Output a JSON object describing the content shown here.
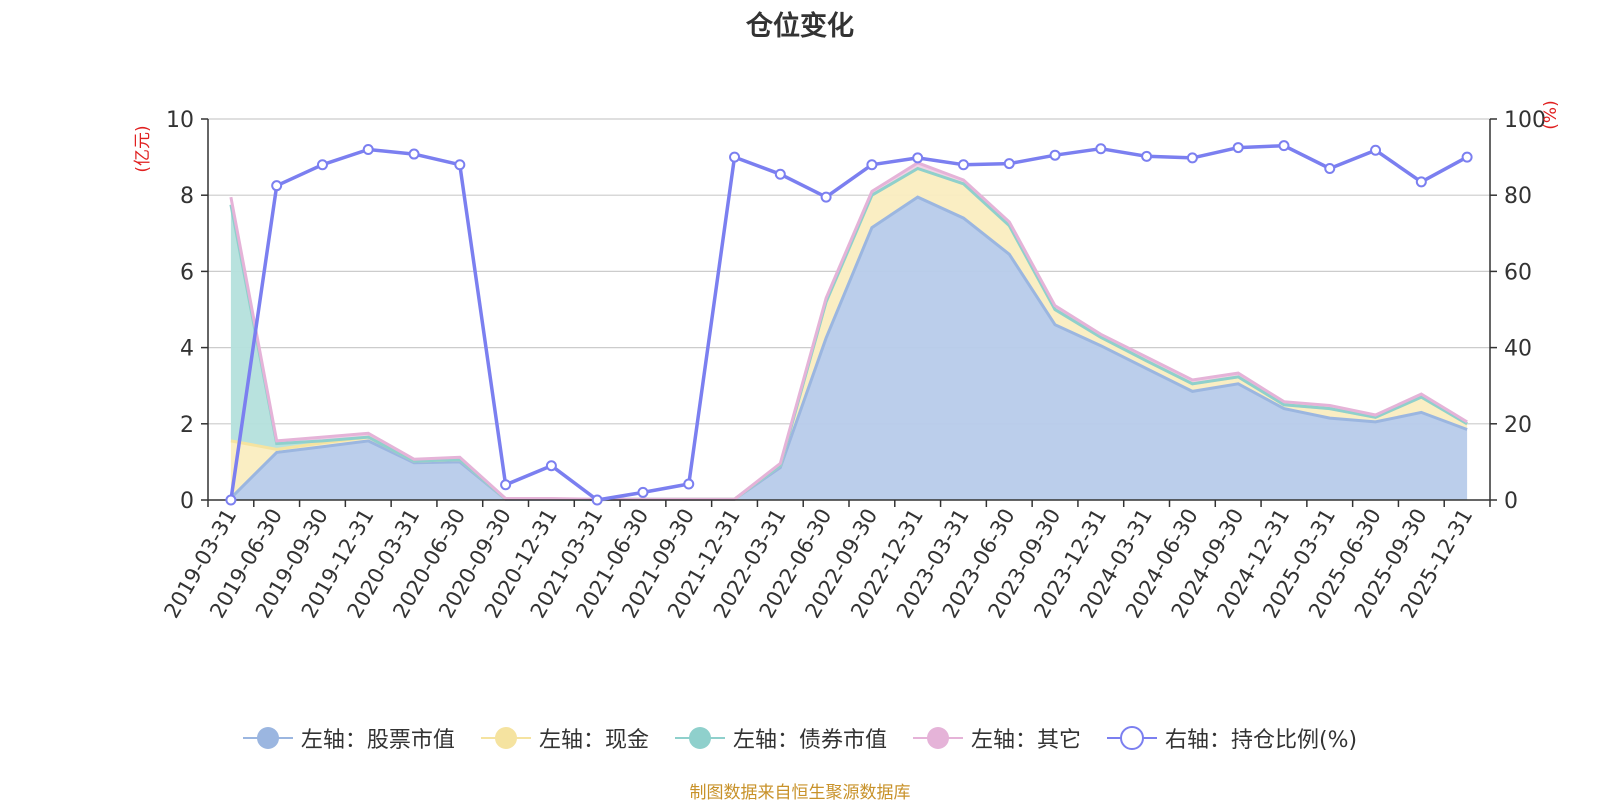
{
  "title": "仓位变化",
  "source": "制图数据来自恒生聚源数据库",
  "chart_data": {
    "type": "area",
    "title": "仓位变化",
    "categories": [
      "2019-03-31",
      "2019-06-30",
      "2019-09-30",
      "2019-12-31",
      "2020-03-31",
      "2020-06-30",
      "2020-09-30",
      "2020-12-31",
      "2021-03-31",
      "2021-06-30",
      "2021-09-30",
      "2021-12-31",
      "2022-03-31",
      "2022-06-30",
      "2022-09-30",
      "2022-12-31",
      "2023-03-31",
      "2023-06-30",
      "2023-09-30",
      "2023-12-31",
      "2024-03-31",
      "2024-06-30",
      "2024-09-30",
      "2024-12-31",
      "2025-03-31",
      "2025-06-30",
      "2025-09-30",
      "2025-12-31"
    ],
    "left_axis": {
      "label": "(亿元)",
      "ylim": [
        0,
        10
      ],
      "ticks": [
        "0",
        "2",
        "4",
        "6",
        "8",
        "10"
      ]
    },
    "right_axis": {
      "label": "(%)",
      "ylim": [
        0,
        100
      ],
      "ticks": [
        "0",
        "20",
        "40",
        "60",
        "80",
        "100"
      ]
    },
    "series": [
      {
        "name": "左轴：股票市值",
        "axis": "left",
        "kind": "stacked-area",
        "color": "#9bb6e0",
        "fill": "#b7cbea",
        "values": [
          0.05,
          1.25,
          1.4,
          1.55,
          0.98,
          1.0,
          0.02,
          0.02,
          0.01,
          0.02,
          0.02,
          0.02,
          0.85,
          4.25,
          7.15,
          7.95,
          7.4,
          6.45,
          4.6,
          4.05,
          3.45,
          2.85,
          3.05,
          2.4,
          2.15,
          2.05,
          2.3,
          1.85
        ]
      },
      {
        "name": "左轴：现金",
        "axis": "left",
        "kind": "stacked-area",
        "color": "#f5e3a0",
        "fill": "#faedc0",
        "values": [
          1.5,
          0.08,
          0.1,
          0.1,
          0.04,
          0.06,
          0.01,
          0.01,
          0.0,
          0.0,
          0.0,
          0.0,
          0.06,
          0.95,
          0.85,
          0.75,
          0.9,
          0.75,
          0.4,
          0.22,
          0.2,
          0.2,
          0.18,
          0.1,
          0.25,
          0.12,
          0.4,
          0.15
        ]
      },
      {
        "name": "左轴：债券市值",
        "axis": "left",
        "kind": "stacked-area",
        "color": "#8fd0cc",
        "fill": "#b4e0dc",
        "values": [
          6.2,
          0.15,
          0.05,
          0.0,
          0.0,
          0.0,
          0.0,
          0.0,
          0.0,
          0.0,
          0.0,
          0.0,
          0.0,
          0.0,
          0.0,
          0.0,
          0.0,
          0.0,
          0.0,
          0.0,
          0.0,
          0.0,
          0.0,
          0.0,
          0.0,
          0.0,
          0.0,
          0.0
        ]
      },
      {
        "name": "左轴：其它",
        "axis": "left",
        "kind": "stacked-area",
        "color": "#e5b3d8",
        "fill": "#f0cfe6",
        "values": [
          0.2,
          0.07,
          0.1,
          0.1,
          0.05,
          0.06,
          0.01,
          0.01,
          0.01,
          0.0,
          0.0,
          0.0,
          0.05,
          0.1,
          0.1,
          0.15,
          0.1,
          0.1,
          0.1,
          0.08,
          0.1,
          0.1,
          0.1,
          0.08,
          0.08,
          0.06,
          0.08,
          0.05
        ]
      },
      {
        "name": "右轴：持仓比例(%)",
        "axis": "right",
        "kind": "line",
        "color": "#7b7ff0",
        "values": [
          0,
          82.5,
          88,
          92,
          90.8,
          88,
          4,
          9,
          0,
          2,
          4.2,
          90,
          85.5,
          79.5,
          88,
          89.8,
          88,
          88.3,
          90.5,
          92.2,
          90.2,
          89.8,
          92.5,
          93,
          87,
          91.8,
          83.5,
          90
        ]
      }
    ]
  },
  "legend": [
    {
      "label": "左轴：股票市值",
      "color": "#9bb6e0",
      "type": "filled"
    },
    {
      "label": "左轴：现金",
      "color": "#f5e3a0",
      "type": "filled"
    },
    {
      "label": "左轴：债券市值",
      "color": "#8fd0cc",
      "type": "filled"
    },
    {
      "label": "左轴：其它",
      "color": "#e5b3d8",
      "type": "filled"
    },
    {
      "label": "右轴：持仓比例(%)",
      "color": "#7b7ff0",
      "type": "hollow"
    }
  ]
}
